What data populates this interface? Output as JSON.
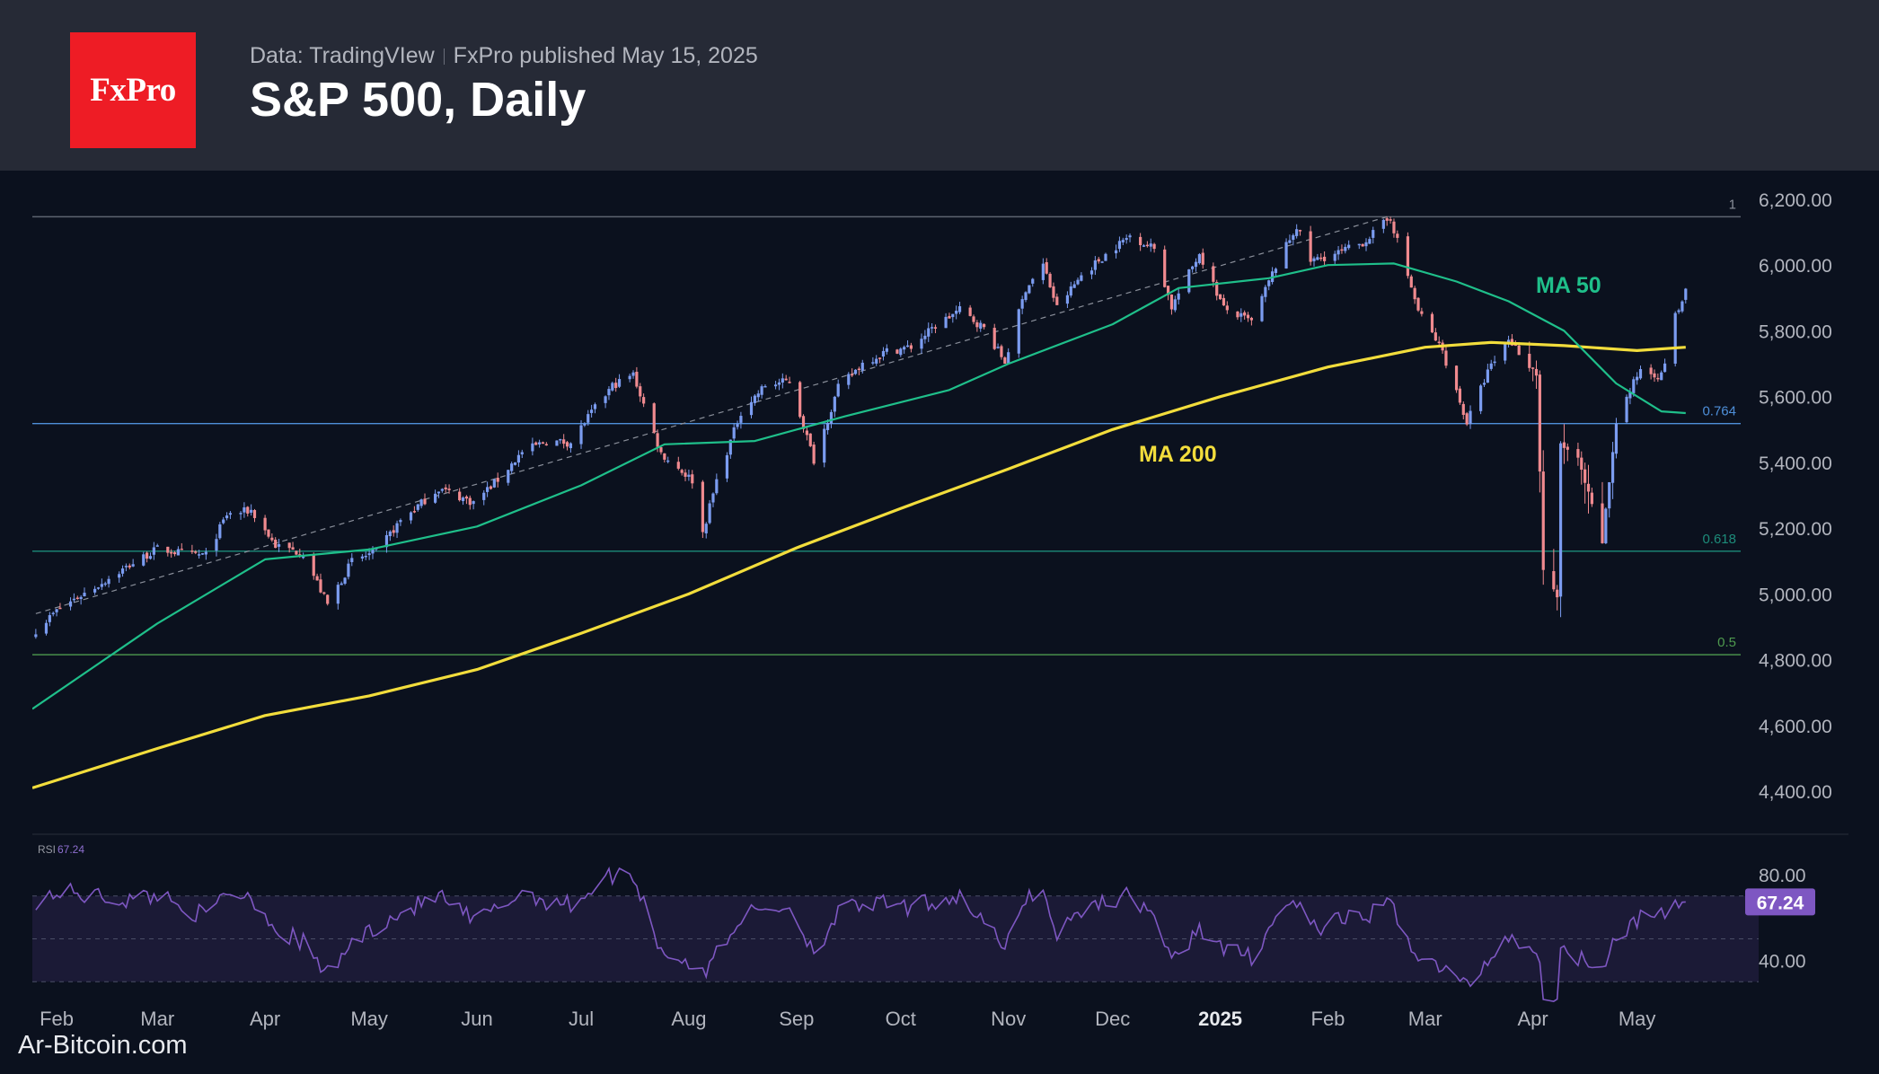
{
  "header": {
    "logo_text": "FxPro",
    "source": "Data: TradingVIew",
    "published": "FxPro published May 15, 2025",
    "title": "S&P 500, Daily"
  },
  "watermark": "Ar-Bitcoin.com",
  "colors": {
    "background": "#0b111e",
    "header_bg": "#262a36",
    "logo_red": "#ee1c25",
    "candle_up": "#7b9cf0",
    "candle_down": "#f08a8f",
    "ma50": "#1fbf8a",
    "ma200": "#f2dd3c",
    "rsi_line": "#7e57c2",
    "rsi_badge": "#7e57c2",
    "fib_1": "#5d6470",
    "fib_0764": "#4e8fd9",
    "fib_0618": "#1d8c7a",
    "fib_05": "#4e9a4e"
  },
  "chart_data": {
    "type": "candlestick",
    "title": "S&P 500, Daily",
    "y_axis": {
      "ticks": [
        "6,200.00",
        "6,000.00",
        "5,800.00",
        "5,600.00",
        "5,400.00",
        "5,200.00",
        "5,000.00",
        "4,800.00",
        "4,600.00",
        "4,400.00"
      ],
      "range": [
        4280,
        6260
      ]
    },
    "x_axis": {
      "ticks": [
        "Feb",
        "Mar",
        "Apr",
        "May",
        "Jun",
        "Jul",
        "Aug",
        "Sep",
        "Oct",
        "Nov",
        "Dec",
        "2025",
        "Feb",
        "Mar",
        "Apr",
        "May"
      ],
      "range": [
        "2024-01-25",
        "2025-06-05"
      ]
    },
    "price_path": [
      [
        "2024-01-26",
        4890
      ],
      [
        "2024-02-02",
        4958
      ],
      [
        "2024-02-12",
        5021
      ],
      [
        "2024-02-22",
        5087
      ],
      [
        "2024-03-01",
        5137
      ],
      [
        "2024-03-08",
        5124
      ],
      [
        "2024-03-15",
        5117
      ],
      [
        "2024-03-21",
        5241
      ],
      [
        "2024-03-28",
        5254
      ],
      [
        "2024-04-04",
        5147
      ],
      [
        "2024-04-12",
        5123
      ],
      [
        "2024-04-19",
        4967
      ],
      [
        "2024-04-26",
        5100
      ],
      [
        "2024-05-03",
        5128
      ],
      [
        "2024-05-10",
        5223
      ],
      [
        "2024-05-21",
        5321
      ],
      [
        "2024-05-31",
        5278
      ],
      [
        "2024-06-07",
        5347
      ],
      [
        "2024-06-14",
        5431
      ],
      [
        "2024-06-21",
        5465
      ],
      [
        "2024-06-28",
        5460
      ],
      [
        "2024-07-03",
        5537
      ],
      [
        "2024-07-10",
        5633
      ],
      [
        "2024-07-16",
        5667
      ],
      [
        "2024-07-24",
        5427
      ],
      [
        "2024-08-02",
        5346
      ],
      [
        "2024-08-05",
        5186
      ],
      [
        "2024-08-09",
        5344
      ],
      [
        "2024-08-16",
        5554
      ],
      [
        "2024-08-23",
        5634
      ],
      [
        "2024-08-30",
        5648
      ],
      [
        "2024-09-06",
        5408
      ],
      [
        "2024-09-13",
        5626
      ],
      [
        "2024-09-20",
        5702
      ],
      [
        "2024-09-27",
        5738
      ],
      [
        "2024-10-04",
        5751
      ],
      [
        "2024-10-11",
        5815
      ],
      [
        "2024-10-18",
        5864
      ],
      [
        "2024-10-25",
        5808
      ],
      [
        "2024-10-31",
        5705
      ],
      [
        "2024-11-06",
        5929
      ],
      [
        "2024-11-11",
        6001
      ],
      [
        "2024-11-15",
        5870
      ],
      [
        "2024-11-22",
        5969
      ],
      [
        "2024-11-29",
        6032
      ],
      [
        "2024-12-06",
        6090
      ],
      [
        "2024-12-13",
        6051
      ],
      [
        "2024-12-18",
        5872
      ],
      [
        "2024-12-26",
        6037
      ],
      [
        "2025-01-02",
        5868
      ],
      [
        "2025-01-10",
        5827
      ],
      [
        "2025-01-17",
        5997
      ],
      [
        "2025-01-23",
        6118
      ],
      [
        "2025-01-27",
        6012
      ],
      [
        "2025-02-04",
        6037
      ],
      [
        "2025-02-11",
        6068
      ],
      [
        "2025-02-19",
        6144
      ],
      [
        "2025-02-27",
        5861
      ],
      [
        "2025-03-06",
        5738
      ],
      [
        "2025-03-13",
        5521
      ],
      [
        "2025-03-19",
        5675
      ],
      [
        "2025-03-25",
        5776
      ],
      [
        "2025-04-02",
        5670
      ],
      [
        "2025-04-04",
        5074
      ],
      [
        "2025-04-08",
        4982
      ],
      [
        "2025-04-09",
        5457
      ],
      [
        "2025-04-14",
        5405
      ],
      [
        "2025-04-21",
        5158
      ],
      [
        "2025-04-25",
        5525
      ],
      [
        "2025-05-02",
        5686
      ],
      [
        "2025-05-08",
        5663
      ],
      [
        "2025-05-12",
        5844
      ],
      [
        "2025-05-15",
        5916
      ]
    ],
    "ma50": {
      "label": "MA 50",
      "points": [
        [
          "2024-01-25",
          4650
        ],
        [
          "2024-03-01",
          4910
        ],
        [
          "2024-04-01",
          5105
        ],
        [
          "2024-05-01",
          5135
        ],
        [
          "2024-06-01",
          5205
        ],
        [
          "2024-07-01",
          5330
        ],
        [
          "2024-07-25",
          5455
        ],
        [
          "2024-08-20",
          5465
        ],
        [
          "2024-09-15",
          5540
        ],
        [
          "2024-10-15",
          5620
        ],
        [
          "2024-11-01",
          5700
        ],
        [
          "2024-12-01",
          5820
        ],
        [
          "2024-12-20",
          5930
        ],
        [
          "2025-01-15",
          5960
        ],
        [
          "2025-02-01",
          6000
        ],
        [
          "2025-02-20",
          6005
        ],
        [
          "2025-03-10",
          5950
        ],
        [
          "2025-03-25",
          5890
        ],
        [
          "2025-04-10",
          5800
        ],
        [
          "2025-04-25",
          5640
        ],
        [
          "2025-05-08",
          5555
        ],
        [
          "2025-05-15",
          5550
        ]
      ]
    },
    "ma200": {
      "label": "MA 200",
      "points": [
        [
          "2024-01-25",
          4410
        ],
        [
          "2024-03-01",
          4530
        ],
        [
          "2024-04-01",
          4630
        ],
        [
          "2024-05-01",
          4690
        ],
        [
          "2024-06-01",
          4770
        ],
        [
          "2024-07-01",
          4880
        ],
        [
          "2024-08-01",
          5000
        ],
        [
          "2024-09-01",
          5140
        ],
        [
          "2024-10-01",
          5260
        ],
        [
          "2024-11-01",
          5380
        ],
        [
          "2024-12-01",
          5500
        ],
        [
          "2025-01-01",
          5600
        ],
        [
          "2025-02-01",
          5690
        ],
        [
          "2025-03-01",
          5750
        ],
        [
          "2025-03-20",
          5765
        ],
        [
          "2025-04-10",
          5755
        ],
        [
          "2025-05-01",
          5740
        ],
        [
          "2025-05-15",
          5750
        ]
      ]
    },
    "trendline": {
      "from": [
        "2024-01-26",
        4940
      ],
      "to": [
        "2025-02-19",
        6150
      ]
    },
    "fibonacci": [
      {
        "label": "1",
        "value": 6147
      },
      {
        "label": "0.764",
        "value": 5518
      },
      {
        "label": "0.618",
        "value": 5130
      },
      {
        "label": "0.5",
        "value": 4815
      }
    ],
    "rsi": {
      "label": "RSI",
      "current": "67.24",
      "ticks": [
        "80.00",
        "40.00"
      ],
      "range": [
        23,
        90
      ],
      "band": [
        70,
        30
      ],
      "points": [
        [
          "2024-01-26",
          68
        ],
        [
          "2024-02-02",
          72
        ],
        [
          "2024-02-12",
          70
        ],
        [
          "2024-02-22",
          68
        ],
        [
          "2024-03-01",
          71
        ],
        [
          "2024-03-15",
          60
        ],
        [
          "2024-03-21",
          72
        ],
        [
          "2024-03-28",
          70
        ],
        [
          "2024-04-04",
          55
        ],
        [
          "2024-04-12",
          48
        ],
        [
          "2024-04-19",
          33
        ],
        [
          "2024-04-26",
          48
        ],
        [
          "2024-05-03",
          56
        ],
        [
          "2024-05-10",
          62
        ],
        [
          "2024-05-21",
          70
        ],
        [
          "2024-05-31",
          58
        ],
        [
          "2024-06-07",
          64
        ],
        [
          "2024-06-14",
          72
        ],
        [
          "2024-06-21",
          68
        ],
        [
          "2024-06-28",
          66
        ],
        [
          "2024-07-03",
          72
        ],
        [
          "2024-07-10",
          80
        ],
        [
          "2024-07-16",
          80
        ],
        [
          "2024-07-24",
          45
        ],
        [
          "2024-08-02",
          38
        ],
        [
          "2024-08-05",
          32
        ],
        [
          "2024-08-09",
          44
        ],
        [
          "2024-08-16",
          60
        ],
        [
          "2024-08-23",
          64
        ],
        [
          "2024-08-30",
          65
        ],
        [
          "2024-09-06",
          44
        ],
        [
          "2024-09-13",
          62
        ],
        [
          "2024-09-20",
          66
        ],
        [
          "2024-09-27",
          66
        ],
        [
          "2024-10-04",
          64
        ],
        [
          "2024-10-11",
          68
        ],
        [
          "2024-10-18",
          70
        ],
        [
          "2024-10-25",
          58
        ],
        [
          "2024-10-31",
          44
        ],
        [
          "2024-11-06",
          70
        ],
        [
          "2024-11-11",
          72
        ],
        [
          "2024-11-15",
          52
        ],
        [
          "2024-11-22",
          64
        ],
        [
          "2024-11-29",
          68
        ],
        [
          "2024-12-06",
          70
        ],
        [
          "2024-12-13",
          62
        ],
        [
          "2024-12-18",
          38
        ],
        [
          "2024-12-26",
          56
        ],
        [
          "2025-01-02",
          44
        ],
        [
          "2025-01-10",
          42
        ],
        [
          "2025-01-17",
          60
        ],
        [
          "2025-01-23",
          68
        ],
        [
          "2025-01-27",
          54
        ],
        [
          "2025-02-04",
          58
        ],
        [
          "2025-02-11",
          60
        ],
        [
          "2025-02-19",
          66
        ],
        [
          "2025-02-27",
          42
        ],
        [
          "2025-03-06",
          36
        ],
        [
          "2025-03-13",
          28
        ],
        [
          "2025-03-19",
          40
        ],
        [
          "2025-03-25",
          52
        ],
        [
          "2025-04-02",
          44
        ],
        [
          "2025-04-04",
          26
        ],
        [
          "2025-04-08",
          24
        ],
        [
          "2025-04-09",
          44
        ],
        [
          "2025-04-14",
          42
        ],
        [
          "2025-04-21",
          38
        ],
        [
          "2025-04-25",
          52
        ],
        [
          "2025-05-02",
          60
        ],
        [
          "2025-05-08",
          60
        ],
        [
          "2025-05-12",
          66
        ],
        [
          "2025-05-15",
          67.24
        ]
      ]
    }
  }
}
